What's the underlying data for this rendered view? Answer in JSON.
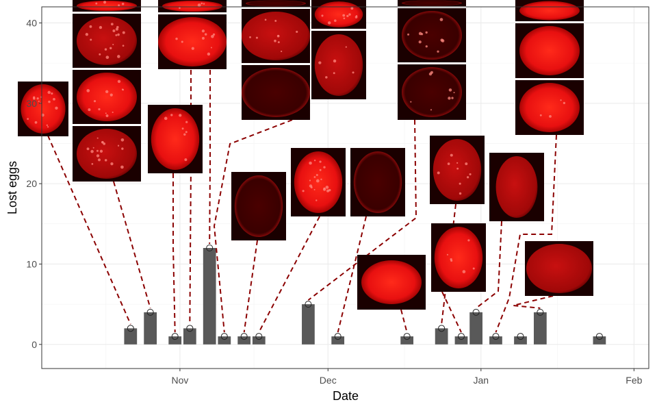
{
  "chart_data": {
    "type": "bar",
    "xlabel": "Date",
    "ylabel": "Lost eggs",
    "x_axis": {
      "type": "date",
      "range": [
        "2011-10-04",
        "2012-02-04"
      ],
      "ticks": [
        "Nov",
        "Dec",
        "Jan",
        "Feb"
      ],
      "tick_dates": [
        "2011-11-01",
        "2011-12-01",
        "2012-01-01",
        "2012-02-01"
      ]
    },
    "y_axis": {
      "range": [
        -3,
        42
      ],
      "ticks": [
        0,
        10,
        20,
        30,
        40
      ],
      "tick_labels": [
        "0",
        "10",
        "20",
        "30",
        "40"
      ]
    },
    "grid": true,
    "theme": "bw",
    "bar_color": "#595959",
    "marker": "open-circle",
    "leader_line_color": "#8b0000",
    "image_color": "#ff1a1a",
    "data": [
      {
        "date": "2011-10-22",
        "value": 2
      },
      {
        "date": "2011-10-26",
        "value": 4
      },
      {
        "date": "2011-10-31",
        "value": 1
      },
      {
        "date": "2011-11-03",
        "value": 2
      },
      {
        "date": "2011-11-07",
        "value": 12
      },
      {
        "date": "2011-11-10",
        "value": 1
      },
      {
        "date": "2011-11-14",
        "value": 1
      },
      {
        "date": "2011-11-17",
        "value": 1
      },
      {
        "date": "2011-11-27",
        "value": 5
      },
      {
        "date": "2011-12-03",
        "value": 1
      },
      {
        "date": "2011-12-17",
        "value": 1
      },
      {
        "date": "2011-12-24",
        "value": 2
      },
      {
        "date": "2011-12-28",
        "value": 1
      },
      {
        "date": "2011-12-31",
        "value": 4
      },
      {
        "date": "2012-01-04",
        "value": 1
      },
      {
        "date": "2012-01-09",
        "value": 1
      },
      {
        "date": "2012-01-13",
        "value": 4
      },
      {
        "date": "2012-01-25",
        "value": 1
      }
    ]
  }
}
